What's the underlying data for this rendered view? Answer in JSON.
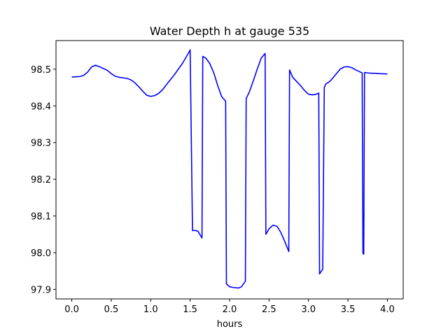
{
  "chart_data": {
    "type": "line",
    "title": "Water Depth h at gauge 535",
    "xlabel": "hours",
    "ylabel": "",
    "xlim": [
      -0.2,
      4.2
    ],
    "ylim": [
      97.874,
      98.578
    ],
    "grid": false,
    "x_ticks": [
      {
        "value": 0.0,
        "label": "0.0"
      },
      {
        "value": 0.5,
        "label": "0.5"
      },
      {
        "value": 1.0,
        "label": "1.0"
      },
      {
        "value": 1.5,
        "label": "1.5"
      },
      {
        "value": 2.0,
        "label": "2.0"
      },
      {
        "value": 2.5,
        "label": "2.5"
      },
      {
        "value": 3.0,
        "label": "3.0"
      },
      {
        "value": 3.5,
        "label": "3.5"
      },
      {
        "value": 4.0,
        "label": "4.0"
      }
    ],
    "y_ticks": [
      {
        "value": 97.9,
        "label": "97.9"
      },
      {
        "value": 98.0,
        "label": "98.0"
      },
      {
        "value": 98.1,
        "label": "98.1"
      },
      {
        "value": 98.2,
        "label": "98.2"
      },
      {
        "value": 98.3,
        "label": "98.3"
      },
      {
        "value": 98.4,
        "label": "98.4"
      },
      {
        "value": 98.5,
        "label": "98.5"
      }
    ],
    "series": [
      {
        "color": "#0000ff",
        "x": [
          0.0,
          0.1,
          0.15,
          0.2,
          0.25,
          0.3,
          0.35,
          0.4,
          0.45,
          0.5,
          0.55,
          0.6,
          0.7,
          0.75,
          0.8,
          0.85,
          0.9,
          0.95,
          1.0,
          1.05,
          1.1,
          1.15,
          1.2,
          1.3,
          1.4,
          1.49,
          1.5,
          1.53,
          1.56,
          1.6,
          1.65,
          1.66,
          1.7,
          1.75,
          1.8,
          1.85,
          1.9,
          1.95,
          1.96,
          1.98,
          2.0,
          2.05,
          2.1,
          2.12,
          2.15,
          2.2,
          2.21,
          2.25,
          2.3,
          2.35,
          2.4,
          2.45,
          2.46,
          2.5,
          2.55,
          2.6,
          2.65,
          2.7,
          2.75,
          2.76,
          2.8,
          2.9,
          2.95,
          3.0,
          3.05,
          3.1,
          3.13,
          3.14,
          3.18,
          3.2,
          3.22,
          3.26,
          3.3,
          3.35,
          3.4,
          3.45,
          3.5,
          3.55,
          3.6,
          3.65,
          3.68,
          3.69,
          3.7,
          3.71,
          3.75,
          3.8,
          3.85,
          3.9,
          4.0
        ],
        "y": [
          98.479,
          98.48,
          98.483,
          98.492,
          98.506,
          98.511,
          98.507,
          98.502,
          98.497,
          98.488,
          98.481,
          98.478,
          98.475,
          98.471,
          98.463,
          98.452,
          98.44,
          98.429,
          98.426,
          98.428,
          98.434,
          98.444,
          98.458,
          98.485,
          98.515,
          98.548,
          98.553,
          98.06,
          98.061,
          98.058,
          98.04,
          98.535,
          98.53,
          98.515,
          98.49,
          98.455,
          98.425,
          98.413,
          97.915,
          97.911,
          97.907,
          97.905,
          97.904,
          97.904,
          97.907,
          97.922,
          98.42,
          98.438,
          98.468,
          98.5,
          98.53,
          98.543,
          98.05,
          98.065,
          98.075,
          98.072,
          98.055,
          98.03,
          98.003,
          98.498,
          98.478,
          98.455,
          98.442,
          98.432,
          98.43,
          98.432,
          98.435,
          97.942,
          97.955,
          98.45,
          98.46,
          98.465,
          98.474,
          98.487,
          98.5,
          98.506,
          98.507,
          98.504,
          98.498,
          98.493,
          98.49,
          97.998,
          97.996,
          98.491,
          98.49,
          98.489,
          98.489,
          98.488,
          98.487
        ]
      }
    ]
  }
}
